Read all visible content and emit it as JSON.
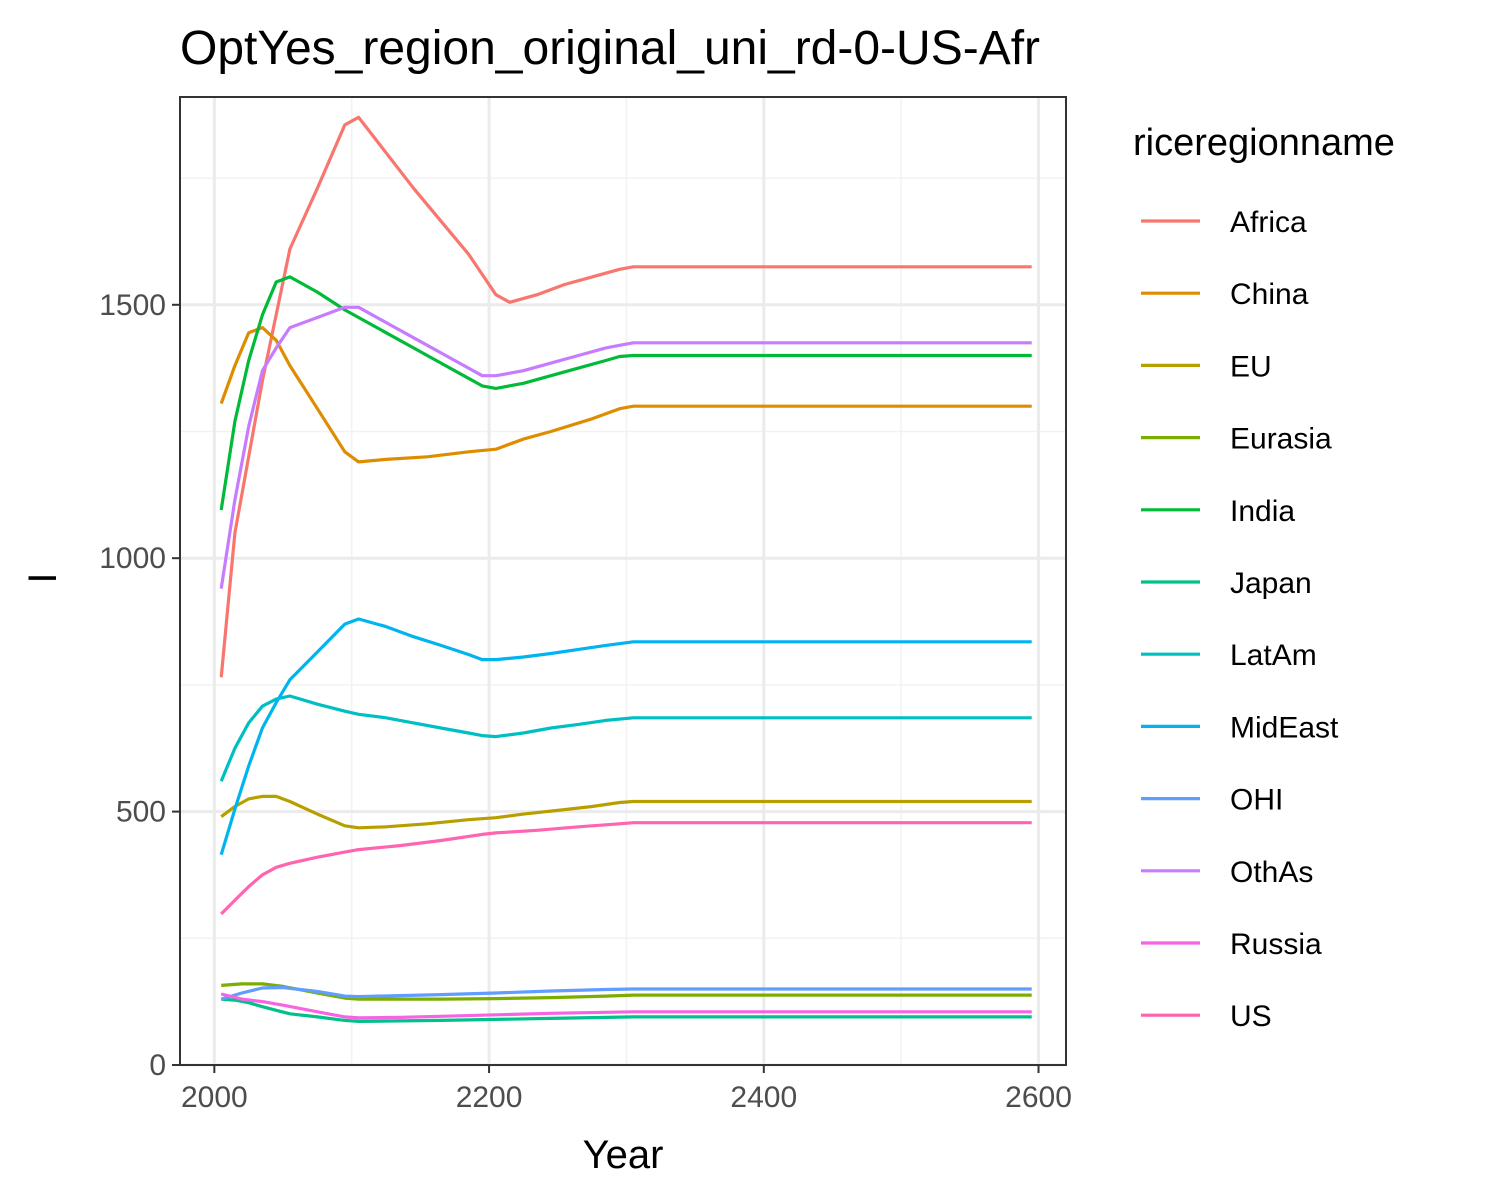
{
  "chart_data": {
    "type": "line",
    "title": "OptYes_region_original_uni_rd-0-US-Afr",
    "xlabel": "Year",
    "ylabel": "I",
    "xlim": [
      1975,
      2620
    ],
    "ylim": [
      0,
      1910
    ],
    "x_ticks": [
      2000,
      2200,
      2400,
      2600
    ],
    "y_ticks": [
      0,
      500,
      1000,
      1500
    ],
    "grid": true,
    "legend": {
      "title": "riceregionname",
      "position": "right"
    },
    "series": [
      {
        "name": "Africa",
        "color": "#F8766D",
        "x": [
          2005,
          2015,
          2035,
          2055,
          2075,
          2095,
          2105,
          2125,
          2145,
          2165,
          2185,
          2195,
          2205,
          2215,
          2235,
          2255,
          2275,
          2295,
          2305,
          2355,
          2405,
          2455,
          2505,
          2555,
          2595
        ],
        "y": [
          765,
          1050,
          1350,
          1610,
          1730,
          1855,
          1870,
          1800,
          1730,
          1665,
          1600,
          1560,
          1520,
          1505,
          1520,
          1540,
          1555,
          1570,
          1575,
          1575,
          1575,
          1575,
          1575,
          1575,
          1575
        ]
      },
      {
        "name": "China",
        "color": "#DE8C00",
        "x": [
          2005,
          2015,
          2025,
          2035,
          2045,
          2055,
          2075,
          2095,
          2105,
          2125,
          2155,
          2185,
          2205,
          2225,
          2245,
          2275,
          2295,
          2305,
          2355,
          2405,
          2455,
          2505,
          2555,
          2595
        ],
        "y": [
          1305,
          1380,
          1445,
          1455,
          1430,
          1380,
          1295,
          1210,
          1190,
          1195,
          1200,
          1210,
          1215,
          1235,
          1250,
          1275,
          1295,
          1300,
          1300,
          1300,
          1300,
          1300,
          1300,
          1300
        ]
      },
      {
        "name": "EU",
        "color": "#B79F00",
        "x": [
          2005,
          2015,
          2025,
          2035,
          2045,
          2055,
          2075,
          2095,
          2105,
          2125,
          2155,
          2185,
          2205,
          2225,
          2255,
          2275,
          2295,
          2305,
          2355,
          2405,
          2455,
          2505,
          2555,
          2595
        ],
        "y": [
          490,
          510,
          525,
          530,
          530,
          520,
          495,
          472,
          468,
          470,
          476,
          484,
          488,
          495,
          504,
          510,
          518,
          520,
          520,
          520,
          520,
          520,
          520,
          520
        ]
      },
      {
        "name": "Eurasia",
        "color": "#7CAE00",
        "x": [
          2005,
          2020,
          2035,
          2050,
          2075,
          2095,
          2105,
          2135,
          2165,
          2205,
          2245,
          2285,
          2305,
          2355,
          2405,
          2455,
          2505,
          2555,
          2595
        ],
        "y": [
          157,
          160,
          160,
          155,
          142,
          132,
          130,
          130,
          130,
          131,
          133,
          136,
          138,
          138,
          138,
          138,
          138,
          138,
          138
        ]
      },
      {
        "name": "India",
        "color": "#00BA38",
        "x": [
          2005,
          2015,
          2025,
          2035,
          2045,
          2055,
          2075,
          2095,
          2105,
          2125,
          2145,
          2165,
          2185,
          2195,
          2205,
          2225,
          2245,
          2265,
          2285,
          2295,
          2305,
          2355,
          2405,
          2455,
          2505,
          2555,
          2595
        ],
        "y": [
          1095,
          1270,
          1390,
          1480,
          1545,
          1555,
          1525,
          1490,
          1475,
          1445,
          1415,
          1385,
          1355,
          1340,
          1335,
          1345,
          1360,
          1375,
          1390,
          1398,
          1400,
          1400,
          1400,
          1400,
          1400,
          1400,
          1400
        ]
      },
      {
        "name": "Japan",
        "color": "#00C08B",
        "x": [
          2005,
          2015,
          2025,
          2035,
          2045,
          2055,
          2075,
          2095,
          2105,
          2135,
          2165,
          2205,
          2245,
          2285,
          2305,
          2355,
          2405,
          2455,
          2505,
          2555,
          2595
        ],
        "y": [
          130,
          128,
          123,
          115,
          108,
          101,
          95,
          88,
          86,
          87,
          88,
          90,
          92,
          94,
          95,
          95,
          95,
          95,
          95,
          95,
          95
        ]
      },
      {
        "name": "LatAm",
        "color": "#00BFC4",
        "x": [
          2005,
          2015,
          2025,
          2035,
          2045,
          2055,
          2075,
          2095,
          2105,
          2125,
          2145,
          2165,
          2185,
          2195,
          2205,
          2225,
          2245,
          2265,
          2285,
          2305,
          2355,
          2405,
          2455,
          2505,
          2555,
          2595
        ],
        "y": [
          560,
          625,
          675,
          708,
          722,
          728,
          712,
          698,
          692,
          685,
          675,
          665,
          655,
          650,
          648,
          655,
          665,
          672,
          680,
          685,
          685,
          685,
          685,
          685,
          685,
          685
        ]
      },
      {
        "name": "MidEast",
        "color": "#00B4F0",
        "x": [
          2005,
          2015,
          2025,
          2035,
          2045,
          2055,
          2075,
          2095,
          2105,
          2125,
          2145,
          2165,
          2185,
          2195,
          2205,
          2225,
          2245,
          2265,
          2285,
          2305,
          2355,
          2405,
          2455,
          2505,
          2555,
          2595
        ],
        "y": [
          415,
          505,
          590,
          665,
          715,
          760,
          815,
          870,
          880,
          865,
          845,
          828,
          810,
          800,
          800,
          805,
          812,
          820,
          828,
          835,
          835,
          835,
          835,
          835,
          835,
          835
        ]
      },
      {
        "name": "OHI",
        "color": "#619CFF",
        "x": [
          2005,
          2020,
          2035,
          2050,
          2075,
          2095,
          2105,
          2135,
          2165,
          2205,
          2245,
          2285,
          2305,
          2355,
          2405,
          2455,
          2505,
          2555,
          2595
        ],
        "y": [
          130,
          142,
          152,
          153,
          145,
          136,
          135,
          137,
          139,
          142,
          146,
          149,
          150,
          150,
          150,
          150,
          150,
          150,
          150
        ]
      },
      {
        "name": "OthAs",
        "color": "#C77CFF",
        "x": [
          2005,
          2015,
          2025,
          2035,
          2045,
          2055,
          2075,
          2095,
          2105,
          2125,
          2145,
          2165,
          2185,
          2195,
          2205,
          2225,
          2245,
          2265,
          2285,
          2295,
          2305,
          2355,
          2405,
          2455,
          2505,
          2555,
          2595
        ],
        "y": [
          940,
          1115,
          1260,
          1370,
          1415,
          1455,
          1475,
          1495,
          1495,
          1465,
          1435,
          1405,
          1375,
          1360,
          1360,
          1370,
          1385,
          1400,
          1415,
          1420,
          1425,
          1425,
          1425,
          1425,
          1425,
          1425,
          1425
        ]
      },
      {
        "name": "Russia",
        "color": "#F564E3",
        "x": [
          2005,
          2020,
          2035,
          2050,
          2075,
          2095,
          2105,
          2135,
          2165,
          2205,
          2245,
          2285,
          2305,
          2355,
          2405,
          2455,
          2505,
          2555,
          2595
        ],
        "y": [
          140,
          130,
          125,
          118,
          105,
          95,
          93,
          94,
          96,
          99,
          102,
          104,
          105,
          105,
          105,
          105,
          105,
          105,
          105
        ]
      },
      {
        "name": "US",
        "color": "#FF64B0",
        "x": [
          2005,
          2015,
          2025,
          2035,
          2045,
          2055,
          2075,
          2095,
          2105,
          2135,
          2165,
          2195,
          2205,
          2235,
          2265,
          2295,
          2305,
          2355,
          2405,
          2455,
          2505,
          2555,
          2595
        ],
        "y": [
          298,
          325,
          352,
          375,
          390,
          398,
          410,
          420,
          425,
          433,
          443,
          455,
          458,
          463,
          470,
          476,
          478,
          478,
          478,
          478,
          478,
          478,
          478
        ]
      }
    ]
  }
}
